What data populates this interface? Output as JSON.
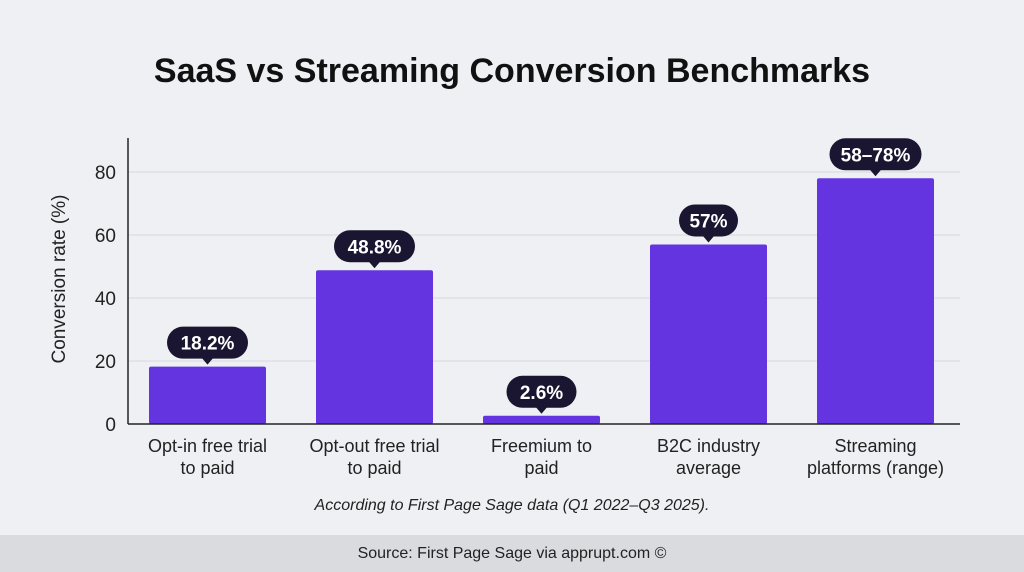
{
  "chart_data": {
    "type": "bar",
    "title": "SaaS vs Streaming Conversion Benchmarks",
    "xlabel": "",
    "ylabel": "Conversion rate (%)",
    "ylim": [
      0,
      90
    ],
    "yticks": [
      0,
      20,
      40,
      60,
      80
    ],
    "grid": true,
    "categories": [
      [
        "Opt-in free trial",
        "to paid"
      ],
      [
        "Opt-out free trial",
        "to paid"
      ],
      [
        "Freemium to",
        "paid"
      ],
      [
        "B2C industry",
        "average"
      ],
      [
        "Streaming",
        "platforms (range)"
      ]
    ],
    "values": [
      18.2,
      48.8,
      2.6,
      57,
      78
    ],
    "data_labels": [
      "18.2%",
      "48.8%",
      "2.6%",
      "57%",
      "58–78%"
    ],
    "bar_color": "#6434e0",
    "label_bg": "#1a1530"
  },
  "note": "According to First Page Sage data (Q1 2022–Q3 2025).",
  "footer": "Source: First Page Sage via apprupt.com ©"
}
